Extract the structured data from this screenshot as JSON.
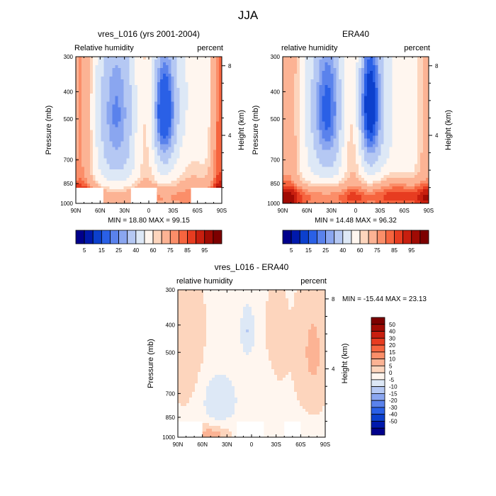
{
  "title": "JJA",
  "colors": {
    "full": [
      "#00008b",
      "#0019ac",
      "#0c40cd",
      "#2a60e6",
      "#5a82ec",
      "#8aa6f0",
      "#b5c8f3",
      "#dde8f6",
      "#fff6ef",
      "#fdd5bd",
      "#fcb394",
      "#fb8e69",
      "#f6653f",
      "#e73c20",
      "#c81f0f",
      "#a00b04",
      "#7d0000"
    ],
    "diff": [
      "#00008b",
      "#0019ac",
      "#0c40cd",
      "#2a60e6",
      "#5a82ec",
      "#8aa6f0",
      "#b5c8f3",
      "#dde8f6",
      "#fff6ef",
      "#fdd5bd",
      "#fcb394",
      "#fb8e69",
      "#f6653f",
      "#e73c20",
      "#c81f0f",
      "#a00b04",
      "#7d0000"
    ]
  },
  "chart_data": [
    {
      "type": "heatmap",
      "title": "vres_L016 (yrs 2001-2004)",
      "left_label": "Relative humidity",
      "right_label": "percent",
      "ylabel": "Pressure (mb)",
      "y2label": "Height (km)",
      "xlabel": "",
      "x_ticks": [
        "90N",
        "60N",
        "30N",
        "0",
        "30S",
        "60S",
        "90S"
      ],
      "y_ticks": [
        "300",
        "400",
        "500",
        "700",
        "850",
        "1000"
      ],
      "y2_ticks": [
        "8",
        "4"
      ],
      "ylim": [
        300,
        1000
      ],
      "xlim": [
        90,
        -90
      ],
      "field": "model",
      "stats": "MIN =  18.80  MAX =  99.15",
      "colorbar": {
        "orientation": "horizontal",
        "labels": [
          "5",
          "15",
          "25",
          "40",
          "60",
          "75",
          "85",
          "95"
        ]
      }
    },
    {
      "type": "heatmap",
      "title": "ERA40",
      "left_label": "relative humidity",
      "right_label": "percent",
      "ylabel": "Pressure (mb)",
      "y2label": "Height (km)",
      "xlabel": "",
      "x_ticks": [
        "90N",
        "60N",
        "30N",
        "0",
        "30S",
        "60S",
        "90S"
      ],
      "y_ticks": [
        "300",
        "400",
        "500",
        "700",
        "850",
        "1000"
      ],
      "y2_ticks": [
        "8",
        "4"
      ],
      "ylim": [
        300,
        1000
      ],
      "xlim": [
        90,
        -90
      ],
      "field": "era",
      "stats": "MIN =  14.48  MAX =  96.32",
      "colorbar": {
        "orientation": "horizontal",
        "labels": [
          "5",
          "15",
          "25",
          "40",
          "60",
          "75",
          "85",
          "95"
        ]
      }
    },
    {
      "type": "heatmap",
      "title": "vres_L016 - ERA40",
      "left_label": "relative humidity",
      "right_label": "percent",
      "ylabel": "Pressure (mb)",
      "y2label": "Height (km)",
      "xlabel": "",
      "x_ticks": [
        "90N",
        "60N",
        "30N",
        "0",
        "30S",
        "60S",
        "90S"
      ],
      "y_ticks": [
        "300",
        "400",
        "500",
        "700",
        "850",
        "1000"
      ],
      "y2_ticks": [
        "8",
        "4"
      ],
      "ylim": [
        300,
        1000
      ],
      "xlim": [
        90,
        -90
      ],
      "field": "diff",
      "stats": "MIN = -15.44  MAX =  23.13",
      "colorbar": {
        "orientation": "vertical",
        "labels": [
          "50",
          "40",
          "30",
          "20",
          "15",
          "10",
          "5",
          "0",
          "-5",
          "-10",
          "-15",
          "-20",
          "-30",
          "-40",
          "-50"
        ]
      }
    }
  ]
}
